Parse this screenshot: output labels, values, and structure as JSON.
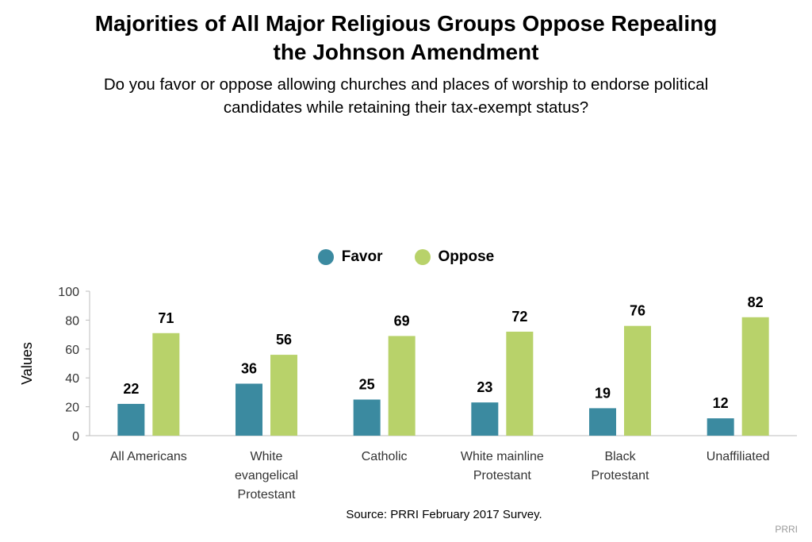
{
  "header": {
    "title_line1": "Majorities of All Major Religious Groups Oppose Repealing",
    "title_line2": "the Johnson Amendment",
    "subtitle_line1": "Do you favor or oppose allowing churches and places of worship to endorse political",
    "subtitle_line2": "candidates while retaining their tax-exempt status?"
  },
  "footer": {
    "source": "Source: PRRI February 2017 Survey.",
    "brand": "PRRI"
  },
  "chart_data": {
    "type": "bar",
    "categories": [
      [
        "All Americans"
      ],
      [
        "White",
        "evangelical",
        "Protestant"
      ],
      [
        "Catholic"
      ],
      [
        "White mainline",
        "Protestant"
      ],
      [
        "Black",
        "Protestant"
      ],
      [
        "Unaffiliated"
      ]
    ],
    "series": [
      {
        "name": "Favor",
        "color": "#3b8aa0",
        "values": [
          22,
          36,
          25,
          23,
          19,
          12
        ]
      },
      {
        "name": "Oppose",
        "color": "#b8d26a",
        "values": [
          71,
          56,
          69,
          72,
          76,
          82
        ]
      }
    ],
    "ylabel": "Values",
    "ylim": [
      0,
      100
    ],
    "yticks": [
      0,
      20,
      40,
      60,
      80,
      100
    ],
    "grid": false,
    "legend_position": "top-center"
  }
}
